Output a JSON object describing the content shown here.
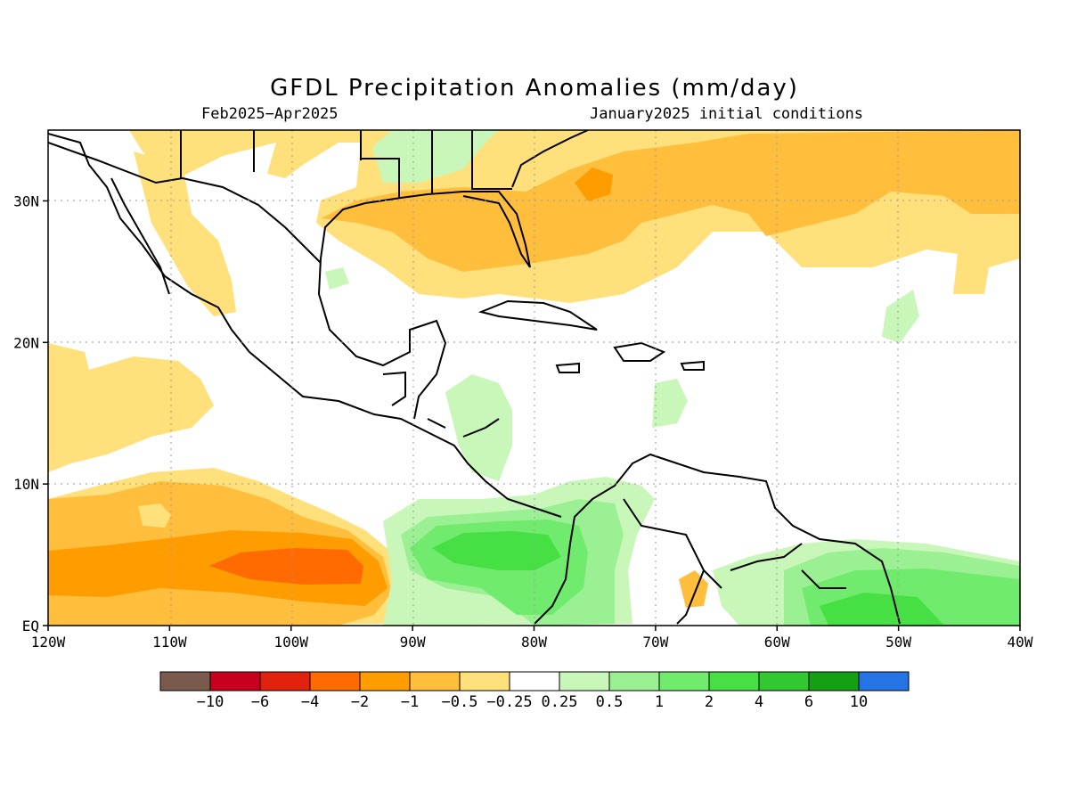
{
  "title": "GFDL Precipitation Anomalies (mm/day)",
  "subtitle_left": "Feb2025−Apr2025",
  "subtitle_right": "January2025 initial conditions",
  "map": {
    "lon_min": -120,
    "lon_max": -40,
    "lat_min": 0,
    "lat_max": 35,
    "lon_ticks": [
      {
        "value": -120,
        "label": "120W"
      },
      {
        "value": -110,
        "label": "110W"
      },
      {
        "value": -100,
        "label": "100W"
      },
      {
        "value": -90,
        "label": "90W"
      },
      {
        "value": -80,
        "label": "80W"
      },
      {
        "value": -70,
        "label": "70W"
      },
      {
        "value": -60,
        "label": "60W"
      },
      {
        "value": -50,
        "label": "50W"
      },
      {
        "value": -40,
        "label": "40W"
      }
    ],
    "lat_ticks": [
      {
        "value": 0,
        "label": "EQ"
      },
      {
        "value": 10,
        "label": "10N"
      },
      {
        "value": 20,
        "label": "20N"
      },
      {
        "value": 30,
        "label": "30N"
      }
    ]
  },
  "colorbar": {
    "colors": [
      "#7a5a4d",
      "#c8001e",
      "#e0220f",
      "#ff6b00",
      "#ff9d00",
      "#ffbe3c",
      "#ffe07a",
      "#ffffff",
      "#c8f7b9",
      "#9cf094",
      "#70eb6e",
      "#46e045",
      "#32c832",
      "#14a014",
      "#2673e6"
    ],
    "labels": [
      "−10",
      "−6",
      "−4",
      "−2",
      "−1",
      "−0.5",
      "−0.25",
      "0.25",
      "0.5",
      "1",
      "2",
      "4",
      "6",
      "10"
    ]
  }
}
